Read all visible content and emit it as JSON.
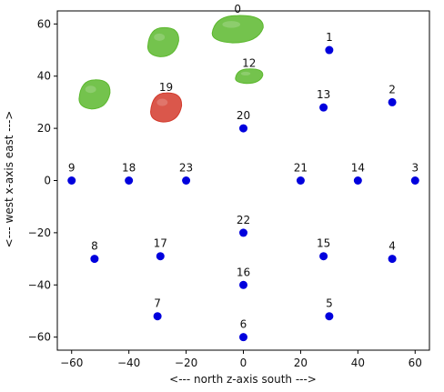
{
  "chart_data": {
    "type": "scatter",
    "title": "",
    "xlabel": "<--- north   z-axis   south --->",
    "ylabel": "<--- west   x-axis   east --->",
    "xlim": [
      -65,
      65
    ],
    "ylim": [
      -65,
      65
    ],
    "xticks": [
      -60,
      -40,
      -20,
      0,
      20,
      40,
      60
    ],
    "yticks": [
      -60,
      -40,
      -20,
      0,
      20,
      40,
      60
    ],
    "grid": false,
    "legend": "none",
    "point_color": "#0000dd",
    "points": [
      {
        "label": "1",
        "x": 30,
        "y": 50
      },
      {
        "label": "2",
        "x": 52,
        "y": 30
      },
      {
        "label": "3",
        "x": 60,
        "y": 0
      },
      {
        "label": "4",
        "x": 52,
        "y": -30
      },
      {
        "label": "5",
        "x": 30,
        "y": -52
      },
      {
        "label": "6",
        "x": 0,
        "y": -60
      },
      {
        "label": "7",
        "x": -30,
        "y": -52
      },
      {
        "label": "8",
        "x": -52,
        "y": -30
      },
      {
        "label": "9",
        "x": -60,
        "y": 0
      },
      {
        "label": "13",
        "x": 28,
        "y": 28
      },
      {
        "label": "14",
        "x": 40,
        "y": 0
      },
      {
        "label": "15",
        "x": 28,
        "y": -29
      },
      {
        "label": "16",
        "x": 0,
        "y": -40
      },
      {
        "label": "17",
        "x": -29,
        "y": -29
      },
      {
        "label": "18",
        "x": -40,
        "y": 0
      },
      {
        "label": "20",
        "x": 0,
        "y": 20
      },
      {
        "label": "21",
        "x": 20,
        "y": 0
      },
      {
        "label": "22",
        "x": 0,
        "y": -20
      },
      {
        "label": "23",
        "x": -20,
        "y": 0
      }
    ],
    "objects": [
      {
        "label": "0",
        "x": -2,
        "y": 58,
        "color": "#5cb82e"
      },
      {
        "label": "12",
        "x": 2,
        "y": 40,
        "color": "#5cb82e"
      },
      {
        "label": "19",
        "x": -27,
        "y": 28,
        "color": "#d33a2c"
      },
      {
        "label": "",
        "x": -28,
        "y": 53,
        "color": "#5cb82e"
      },
      {
        "label": "",
        "x": -52,
        "y": 33,
        "color": "#5cb82e"
      }
    ]
  }
}
